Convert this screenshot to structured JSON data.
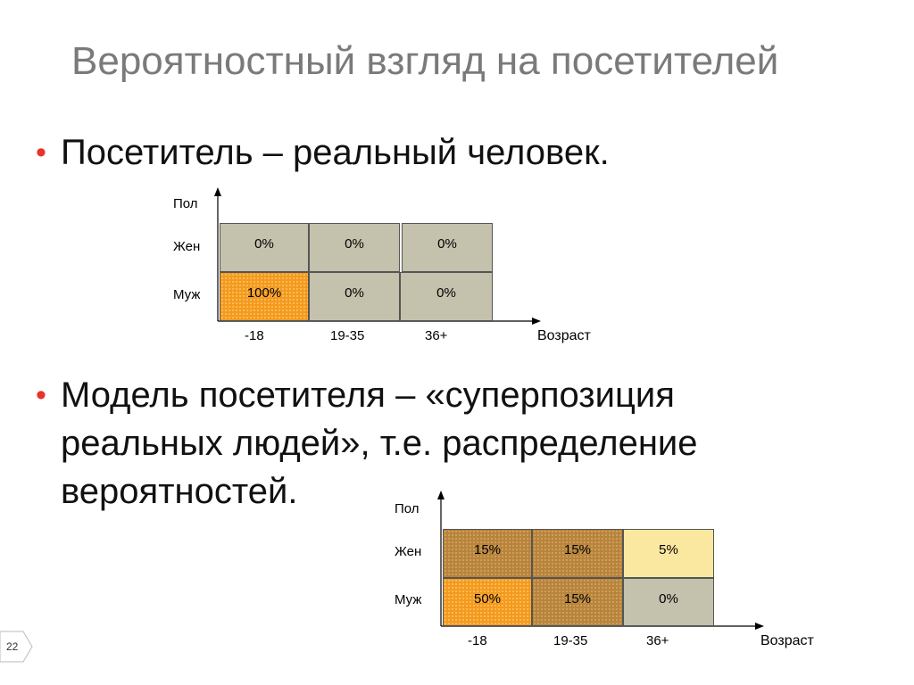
{
  "slide": {
    "title": "Вероятностный взгляд на посетителей",
    "bullet1": "Посетитель – реальный человек.",
    "bullet2": "Модель посетителя – «суперпозиция реальных людей», т.е. распределение вероятностей.",
    "bullet_marker": "•",
    "page_number": "22"
  },
  "colors": {
    "bullet": "#e8322a",
    "title": "#7a7a7a",
    "gray_cell": "#c4c1ac",
    "orange_cell": "#f39a1f",
    "brown_cell": "#b8843d",
    "yellow_cell": "#fbe8a0"
  },
  "table1": {
    "y_axis_label": "Пол",
    "x_axis_label": "Возраст",
    "rows": [
      "Жен",
      "Муж"
    ],
    "cols": [
      "-18",
      "19-35",
      "36+"
    ],
    "cells": [
      [
        "0%",
        "0%",
        "0%"
      ],
      [
        "100%",
        "0%",
        "0%"
      ]
    ]
  },
  "table2": {
    "y_axis_label": "Пол",
    "x_axis_label": "Возраст",
    "rows": [
      "Жен",
      "Муж"
    ],
    "cols": [
      "-18",
      "19-35",
      "36+"
    ],
    "cells": [
      [
        "15%",
        "15%",
        "5%"
      ],
      [
        "50%",
        "15%",
        "0%"
      ]
    ]
  }
}
